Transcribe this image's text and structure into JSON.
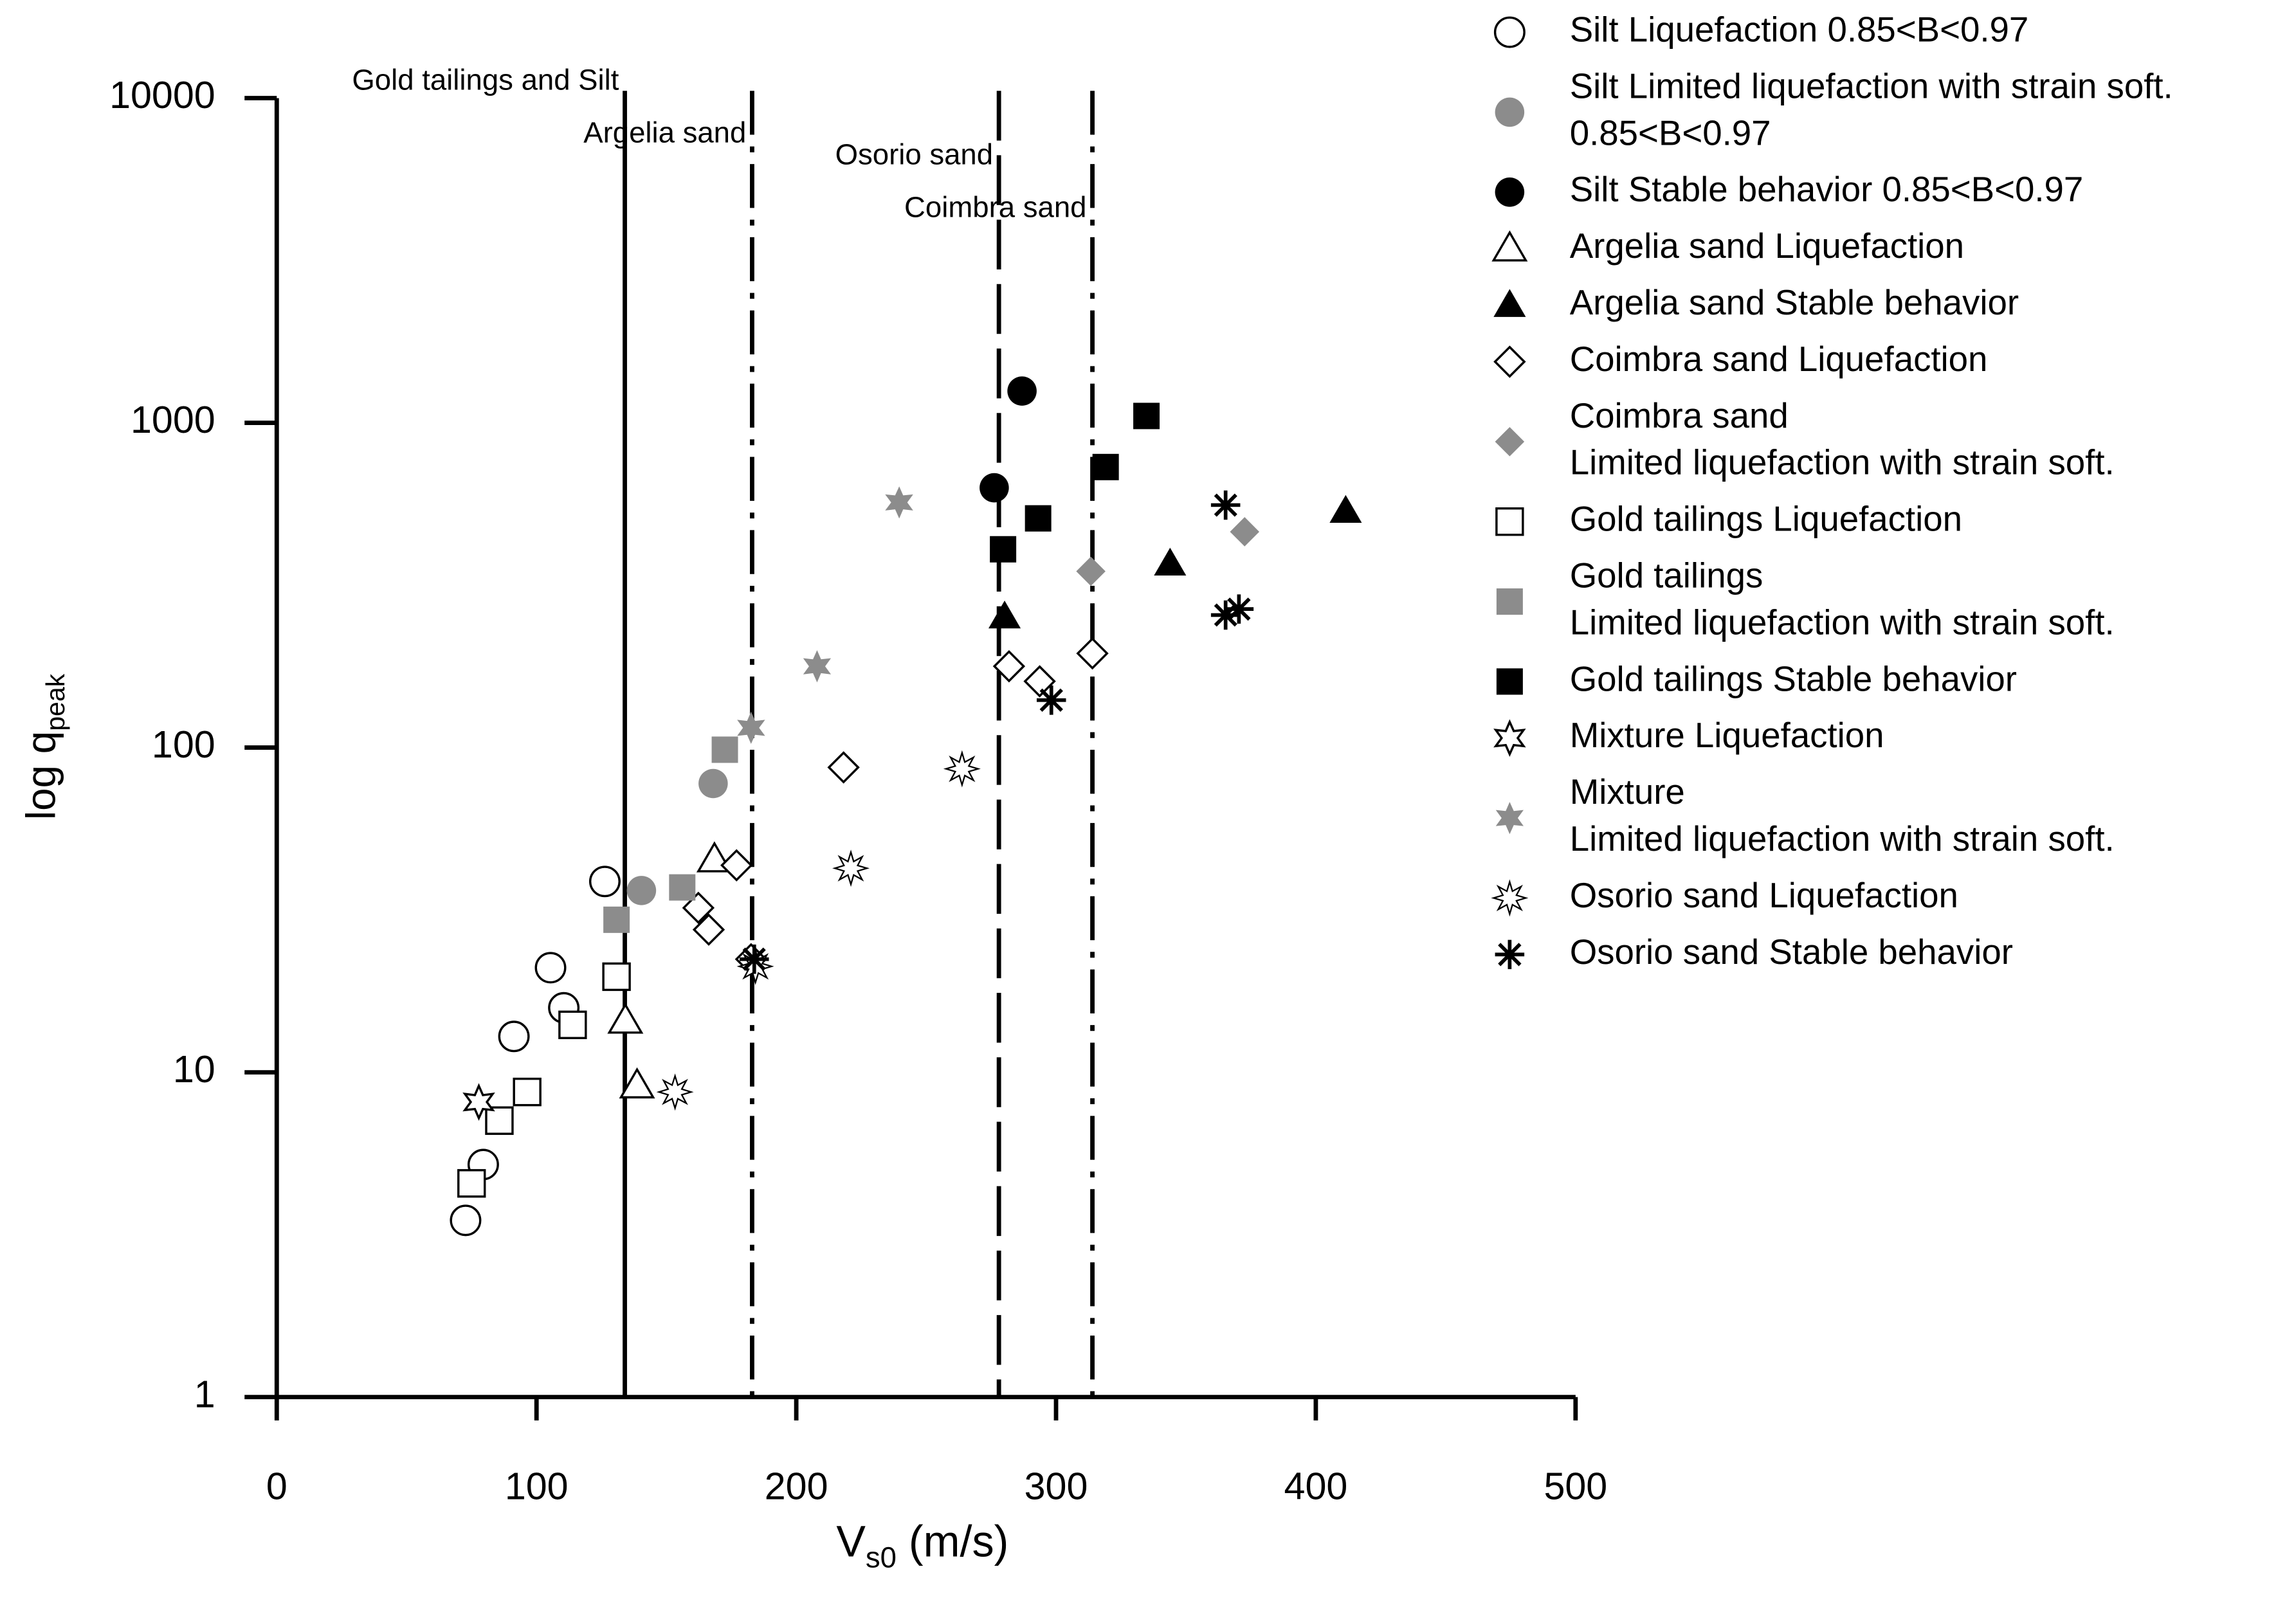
{
  "chart_data": {
    "type": "scatter",
    "x_label": {
      "text": "V",
      "sub": "s0",
      "unit": " (m/s)"
    },
    "y_label": {
      "text": "log q",
      "sub": "peak"
    },
    "xlim": [
      0,
      500
    ],
    "xticks": [
      0,
      100,
      200,
      300,
      400,
      500
    ],
    "ylim": [
      1,
      10000
    ],
    "yticks": [
      1,
      10,
      100,
      1000,
      10000
    ],
    "ylog": true,
    "reference_lines": [
      {
        "x": 134,
        "label": "Gold tailings and Silt",
        "style": "solid"
      },
      {
        "x": 183,
        "label": "Argelia sand",
        "style": "dashdot"
      },
      {
        "x": 278,
        "label": "Osorio sand",
        "style": "dash"
      },
      {
        "x": 314,
        "label": "Coimbra sand",
        "style": "dashdot"
      }
    ],
    "series": [
      {
        "name": [
          "Silt Liquefaction 0.85<B<0.97"
        ],
        "marker": "circle",
        "color": "#000000",
        "filled": false,
        "x": [
          72.7,
          79.5,
          91.3,
          105.4,
          110.5,
          126.3
        ],
        "values": [
          3.5,
          5.2,
          12.9,
          21,
          15.8,
          38.7
        ]
      },
      {
        "name": [
          "Silt Limited liquefaction with strain soft.",
          "0.85<B<0.97"
        ],
        "marker": "circle",
        "color": "#8c8c8c",
        "filled": true,
        "x": [
          140.4,
          168.0
        ],
        "values": [
          36.3,
          77.5
        ]
      },
      {
        "name": [
          "Silt Stable behavior 0.85<B<0.97"
        ],
        "marker": "circle",
        "color": "#000000",
        "filled": true,
        "x": [
          286.9,
          276.2
        ],
        "values": [
          1253,
          631
        ]
      },
      {
        "name": [
          "Argelia sand Liquefaction"
        ],
        "marker": "triangle",
        "color": "#000000",
        "filled": false,
        "x": [
          134.2,
          138.7,
          168.5
        ],
        "values": [
          14.4,
          9.1,
          45.2
        ]
      },
      {
        "name": [
          "Argelia sand Stable behavior"
        ],
        "marker": "triangle",
        "color": "#000000",
        "filled": true,
        "x": [
          280.2,
          343.9,
          411.5
        ],
        "values": [
          253,
          368,
          535
        ]
      },
      {
        "name": [
          "Coimbra sand Liquefaction"
        ],
        "marker": "diamond",
        "color": "#000000",
        "filled": false,
        "x": [
          162.3,
          166.3,
          177.0,
          182.6,
          218.2,
          281.9,
          293.7,
          314.0
        ],
        "values": [
          32.1,
          27.5,
          43.4,
          22.3,
          86.9,
          178,
          160,
          195
        ]
      },
      {
        "name": [
          "Coimbra sand",
          "Limited liquefaction with strain soft."
        ],
        "marker": "diamond",
        "color": "#8c8c8c",
        "filled": true,
        "x": [
          313.4,
          372.6
        ],
        "values": [
          349,
          462
        ]
      },
      {
        "name": [
          "Gold tailings Liquefaction"
        ],
        "marker": "square",
        "color": "#000000",
        "filled": false,
        "x": [
          75.0,
          85.7,
          96.4,
          113.9,
          130.8
        ],
        "values": [
          4.55,
          7.1,
          8.7,
          14.0,
          19.7
        ]
      },
      {
        "name": [
          "Gold tailings",
          "Limited liquefaction with strain soft."
        ],
        "marker": "square",
        "color": "#8c8c8c",
        "filled": true,
        "x": [
          130.8,
          156.1,
          172.5
        ],
        "values": [
          29.5,
          37.1,
          98.5
        ]
      },
      {
        "name": [
          "Gold tailings Stable behavior"
        ],
        "marker": "square",
        "color": "#000000",
        "filled": true,
        "x": [
          279.6,
          293.1,
          319.1,
          334.8
        ],
        "values": [
          408,
          508,
          731,
          1050
        ]
      },
      {
        "name": [
          "Mixture Liquefaction"
        ],
        "marker": "star6",
        "color": "#000000",
        "filled": false,
        "x": [
          77.8
        ],
        "values": [
          8.1
        ]
      },
      {
        "name": [
          "Mixture",
          "Limited liquefaction with strain soft."
        ],
        "marker": "star6",
        "color": "#8c8c8c",
        "filled": true,
        "x": [
          182.6,
          208.0,
          239.6
        ],
        "values": [
          115,
          178,
          569
        ]
      },
      {
        "name": [
          "Osorio sand Liquefaction"
        ],
        "marker": "burst",
        "color": "#000000",
        "filled": false,
        "x": [
          153.3,
          184.3,
          221.0,
          263.8
        ],
        "values": [
          8.7,
          21.2,
          42.5,
          86.0
        ]
      },
      {
        "name": [
          "Osorio sand Stable behavior"
        ],
        "marker": "asterisk",
        "color": "#000000",
        "filled": true,
        "x": [
          183.8,
          298.2,
          365.3,
          365.3,
          370.4
        ],
        "values": [
          22.3,
          140,
          558,
          256,
          267
        ]
      }
    ]
  }
}
